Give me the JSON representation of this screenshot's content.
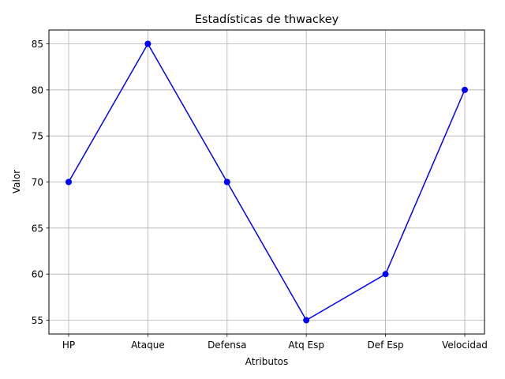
{
  "chart_data": {
    "type": "line",
    "title": "Estadísticas de thwackey",
    "xlabel": "Atributos",
    "ylabel": "Valor",
    "categories": [
      "HP",
      "Ataque",
      "Defensa",
      "Atq Esp",
      "Def Esp",
      "Velocidad"
    ],
    "values": [
      70,
      85,
      70,
      55,
      60,
      80
    ],
    "ylim": [
      53.5,
      86.5
    ],
    "yticks": [
      55,
      60,
      65,
      70,
      75,
      80,
      85
    ],
    "grid": true,
    "line_color": "#0000ff",
    "marker": "circle"
  }
}
